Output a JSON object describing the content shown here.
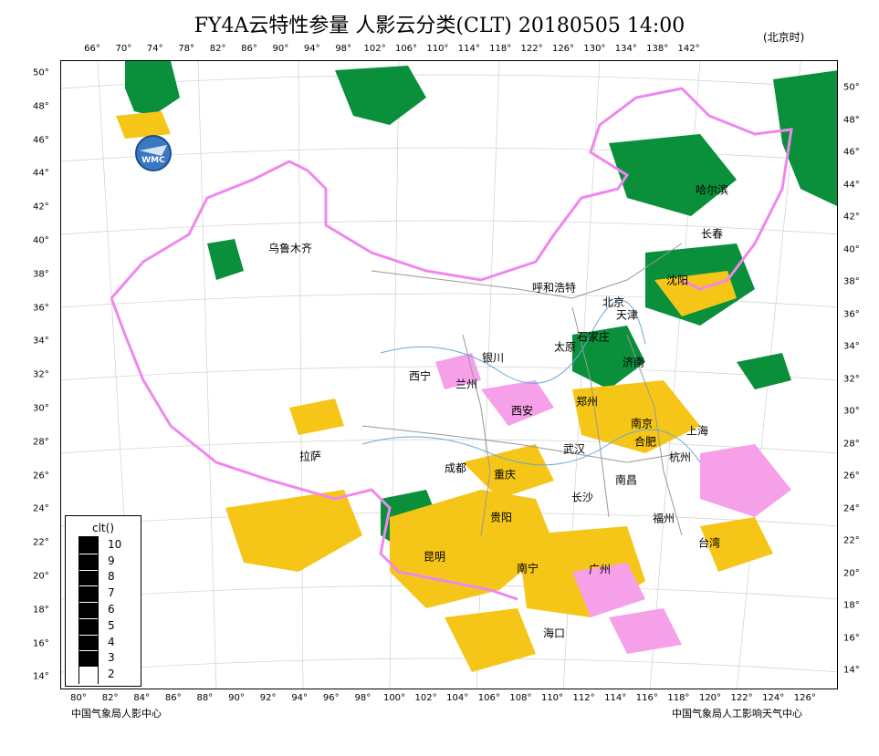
{
  "title": "FY4A云特性参量 人影云分类(CLT) 20180505 14:00",
  "timezone": "(北京时)",
  "logo_text": "WMC",
  "top_lon_labels": [
    "66°",
    "70°",
    "74°",
    "78°",
    "82°",
    "86°",
    "90°",
    "94°",
    "98°",
    "102°",
    "106°",
    "110°",
    "114°",
    "118°",
    "122°",
    "126°",
    "130°",
    "134°",
    "138°",
    "142°"
  ],
  "bottom_lon_labels": [
    "80°",
    "82°",
    "84°",
    "86°",
    "88°",
    "90°",
    "92°",
    "94°",
    "96°",
    "98°",
    "100°",
    "102°",
    "104°",
    "106°",
    "108°",
    "110°",
    "112°",
    "114°",
    "116°",
    "118°",
    "120°",
    "122°",
    "124°",
    "126°"
  ],
  "left_lat_labels": [
    "50°",
    "48°",
    "46°",
    "44°",
    "42°",
    "40°",
    "38°",
    "36°",
    "34°",
    "32°",
    "30°",
    "28°",
    "26°",
    "24°",
    "22°",
    "20°",
    "18°",
    "16°",
    "14°"
  ],
  "right_lat_labels": [
    "50°",
    "48°",
    "46°",
    "44°",
    "42°",
    "40°",
    "38°",
    "36°",
    "34°",
    "32°",
    "30°",
    "28°",
    "26°",
    "24°",
    "22°",
    "20°",
    "18°",
    "16°",
    "14°"
  ],
  "cities": [
    {
      "name": "哈尔滨"
    },
    {
      "name": "长春"
    },
    {
      "name": "乌鲁木齐"
    },
    {
      "name": "沈阳"
    },
    {
      "name": "呼和浩特"
    },
    {
      "name": "北京"
    },
    {
      "name": "天津"
    },
    {
      "name": "太原"
    },
    {
      "name": "石家庄"
    },
    {
      "name": "银川"
    },
    {
      "name": "济南"
    },
    {
      "name": "西宁"
    },
    {
      "name": "兰州"
    },
    {
      "name": "西安"
    },
    {
      "name": "郑州"
    },
    {
      "name": "南京"
    },
    {
      "name": "上海"
    },
    {
      "name": "合肥"
    },
    {
      "name": "拉萨"
    },
    {
      "name": "武汉"
    },
    {
      "name": "杭州"
    },
    {
      "name": "成都"
    },
    {
      "name": "重庆"
    },
    {
      "name": "南昌"
    },
    {
      "name": "长沙"
    },
    {
      "name": "贵阳"
    },
    {
      "name": "福州"
    },
    {
      "name": "台湾"
    },
    {
      "name": "昆明"
    },
    {
      "name": "南宁"
    },
    {
      "name": "广州"
    },
    {
      "name": "海口"
    }
  ],
  "legend": {
    "title": "clt()",
    "labels": [
      "10",
      "9",
      "8",
      "7",
      "6",
      "5",
      "4",
      "3",
      "2"
    ]
  },
  "credits": {
    "left": "中国气象局人影中心",
    "right": "中国气象局人工影响天气中心"
  },
  "colors": {
    "green": "#0a8f3a",
    "yellow": "#f5c518",
    "pink": "#f5a0e8",
    "border": "#ee88ee",
    "legend_fill": "#000000"
  }
}
